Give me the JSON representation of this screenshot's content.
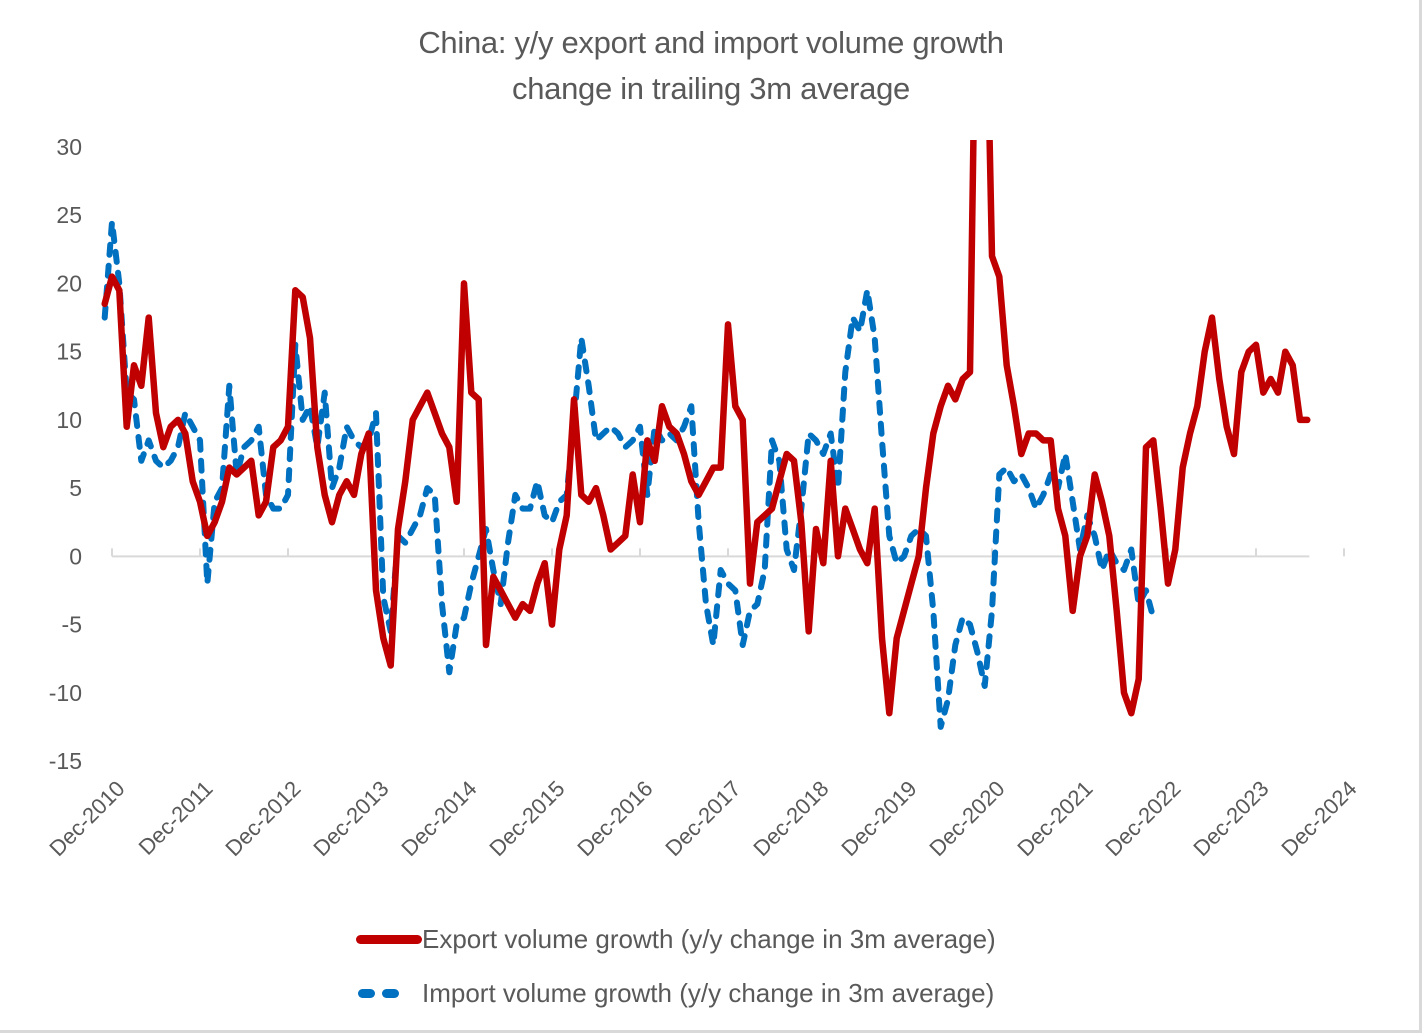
{
  "chart_data": {
    "type": "line",
    "title": "China: y/y export and import volume growth",
    "subtitle": "change in trailing 3m average",
    "xlabel": "",
    "ylabel": "",
    "ylim": [
      -15,
      30
    ],
    "yticks": [
      30,
      25,
      20,
      15,
      10,
      5,
      0,
      -5,
      -10,
      -15
    ],
    "x_tick_labels": [
      "Dec-2010",
      "Dec-2011",
      "Dec-2012",
      "Dec-2013",
      "Dec-2014",
      "Dec-2015",
      "Dec-2016",
      "Dec-2017",
      "Dec-2018",
      "Dec-2019",
      "Dec-2020",
      "Dec-2021",
      "Dec-2022",
      "Dec-2023",
      "Dec-2024"
    ],
    "x_start": "Nov-2010",
    "x_frequency": "monthly",
    "grid": false,
    "legend_position": "bottom",
    "series": [
      {
        "name": "Export volume growth (y/y change in 3m average)",
        "color": "#c00000",
        "style": "solid",
        "values": [
          18.5,
          20.5,
          19.5,
          9.5,
          14,
          12.5,
          17.5,
          10.5,
          8,
          9.5,
          10,
          9,
          5.5,
          4,
          1.5,
          2.5,
          4,
          6.5,
          6,
          6.5,
          7,
          3,
          4,
          8,
          8.5,
          9.5,
          19.5,
          19,
          16,
          8,
          4.5,
          2.5,
          4.5,
          5.5,
          4.5,
          7.5,
          9,
          -2.5,
          -6,
          -8,
          2,
          5.5,
          10,
          11,
          12,
          10.5,
          9,
          8,
          4,
          20,
          12,
          11.5,
          -6.5,
          -1.5,
          -2.5,
          -3.5,
          -4.5,
          -3.5,
          -4,
          -2,
          -0.5,
          -5,
          0.5,
          3,
          11.5,
          4.5,
          4,
          5,
          3,
          0.5,
          1,
          1.5,
          6,
          2.5,
          8.5,
          7,
          11,
          9.5,
          9,
          7.5,
          5.5,
          4.5,
          5.5,
          6.5,
          6.5,
          17,
          11,
          10,
          -2,
          2.5,
          3,
          3.5,
          5.5,
          7.5,
          7,
          2.5,
          -5.5,
          2,
          -0.5,
          7,
          0,
          3.5,
          2,
          0.5,
          -0.5,
          3.5,
          -6,
          -11.5,
          -6,
          -4,
          -2,
          0,
          5,
          9,
          11,
          12.5,
          11.5,
          13,
          13.5,
          50,
          48,
          22,
          20.5,
          14,
          11,
          7.5,
          9,
          9,
          8.5,
          8.5,
          3.5,
          1.5,
          -4,
          0,
          1.5,
          6,
          4,
          1.5,
          -4,
          -10,
          -11.5,
          -9,
          8,
          8.5,
          3.5,
          -2,
          0.5,
          6.5,
          9,
          11,
          15,
          17.5,
          13,
          9.5,
          7.5,
          13.5,
          15,
          15.5,
          12,
          13,
          12,
          15,
          14,
          10,
          10
        ]
      },
      {
        "name": "Import volume growth (y/y change in 3m average)",
        "color": "#0070c0",
        "style": "dashed",
        "values": [
          17.5,
          24.5,
          20,
          12,
          11.5,
          7,
          8.5,
          7,
          6.5,
          7,
          8,
          10.5,
          9.5,
          8.5,
          -2,
          4,
          5,
          12.5,
          6,
          8,
          8.5,
          9.5,
          4.5,
          3.5,
          3.5,
          4.5,
          15.5,
          10,
          11,
          8,
          12,
          5,
          6.5,
          9.5,
          8.5,
          8,
          8.5,
          10.5,
          -3,
          -5.5,
          1.5,
          1,
          2,
          3,
          5,
          4.5,
          -3.5,
          -8.5,
          -5,
          -4.5,
          -2,
          0,
          2,
          -1,
          -3.5,
          1,
          4.5,
          3.5,
          3.5,
          5.5,
          3,
          2.5,
          4,
          4.5,
          10,
          16,
          12.5,
          8.5,
          9,
          9.5,
          9,
          8,
          8.5,
          9.5,
          4.5,
          9.5,
          8.5,
          9,
          8.5,
          9.5,
          11,
          2.5,
          -3.5,
          -6.5,
          -1,
          -2,
          -2.5,
          -6.5,
          -4,
          -3.5,
          -1,
          8.5,
          7,
          0.5,
          -1,
          3.5,
          9,
          8.5,
          7.5,
          9,
          5,
          13.5,
          17.5,
          16.5,
          19.5,
          16,
          8.5,
          1.5,
          -0.5,
          0,
          1.5,
          2,
          1.5,
          -4,
          -12.5,
          -10.5,
          -6.5,
          -4.5,
          -5,
          -7,
          -9.5,
          -4,
          6,
          6.5,
          5.5,
          6,
          5,
          3.5,
          4.5,
          6,
          5,
          7.5,
          4,
          0.5,
          3,
          1.5,
          -1,
          0.5,
          -0.5,
          -1,
          0.5,
          -3.5,
          -2.5,
          -4.5
        ]
      }
    ]
  },
  "legend": {
    "export_label": "Export volume growth (y/y change in 3m average)",
    "import_label": "Import volume growth (y/y change in 3m average)"
  }
}
